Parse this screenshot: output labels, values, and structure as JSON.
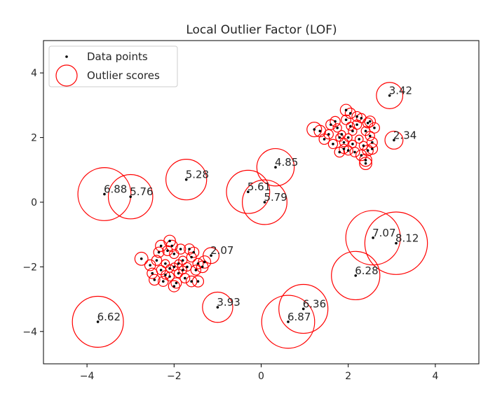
{
  "chart_data": {
    "type": "scatter",
    "title": "Local Outlier Factor (LOF)",
    "xlabel": "",
    "ylabel": "",
    "xlim": [
      -5,
      5
    ],
    "ylim": [
      -5,
      5
    ],
    "xticks": [
      "−4",
      "−2",
      "0",
      "2",
      "4"
    ],
    "yticks": [
      "−4",
      "−2",
      "0",
      "2",
      "4"
    ],
    "xtick_values": [
      -4,
      -2,
      0,
      2,
      4
    ],
    "ytick_values": [
      -4,
      -2,
      0,
      2,
      4
    ],
    "grid": false,
    "legend": {
      "position": "top-left",
      "entries": [
        "Data points",
        "Outlier scores"
      ]
    },
    "colors": {
      "points": "#000000",
      "circles": "#ff0000"
    },
    "outliers": [
      {
        "x": 2.95,
        "y": 3.3,
        "score": 3.42,
        "label": "3.42"
      },
      {
        "x": 3.05,
        "y": 1.92,
        "score": 2.34,
        "label": "2.34"
      },
      {
        "x": 0.33,
        "y": 1.08,
        "score": 4.85,
        "label": "4.85"
      },
      {
        "x": -1.72,
        "y": 0.7,
        "score": 5.28,
        "label": "5.28"
      },
      {
        "x": -3.6,
        "y": 0.25,
        "score": 6.88,
        "label": "6.88"
      },
      {
        "x": -3.0,
        "y": 0.17,
        "score": 5.76,
        "label": "5.76"
      },
      {
        "x": -0.3,
        "y": 0.32,
        "score": 5.61,
        "label": "5.61"
      },
      {
        "x": 0.08,
        "y": 0.0,
        "score": 5.79,
        "label": "5.79"
      },
      {
        "x": 2.57,
        "y": -1.1,
        "score": 7.07,
        "label": "7.07"
      },
      {
        "x": 3.1,
        "y": -1.27,
        "score": 8.12,
        "label": "8.12"
      },
      {
        "x": -1.15,
        "y": -1.65,
        "score": 2.07,
        "label": "2.07"
      },
      {
        "x": 2.17,
        "y": -2.27,
        "score": 6.28,
        "label": "6.28"
      },
      {
        "x": -1.0,
        "y": -3.25,
        "score": 3.93,
        "label": "3.93"
      },
      {
        "x": 0.97,
        "y": -3.3,
        "score": 6.36,
        "label": "6.36"
      },
      {
        "x": 0.62,
        "y": -3.7,
        "score": 6.87,
        "label": "6.87"
      },
      {
        "x": -3.75,
        "y": -3.7,
        "score": 6.62,
        "label": "6.62"
      }
    ],
    "inliers": [
      {
        "x": 2.0,
        "y": 2.0,
        "score": 1.0
      },
      {
        "x": 2.1,
        "y": 2.2,
        "score": 1.1
      },
      {
        "x": 1.85,
        "y": 2.1,
        "score": 1.0
      },
      {
        "x": 2.25,
        "y": 1.95,
        "score": 1.05
      },
      {
        "x": 1.9,
        "y": 1.85,
        "score": 1.1
      },
      {
        "x": 2.2,
        "y": 2.4,
        "score": 1.2
      },
      {
        "x": 1.75,
        "y": 2.3,
        "score": 1.1
      },
      {
        "x": 2.4,
        "y": 2.2,
        "score": 1.15
      },
      {
        "x": 1.65,
        "y": 1.8,
        "score": 1.2
      },
      {
        "x": 2.35,
        "y": 1.75,
        "score": 1.1
      },
      {
        "x": 2.0,
        "y": 1.6,
        "score": 1.2
      },
      {
        "x": 1.95,
        "y": 2.55,
        "score": 1.25
      },
      {
        "x": 2.3,
        "y": 2.6,
        "score": 1.2
      },
      {
        "x": 1.55,
        "y": 2.1,
        "score": 1.2
      },
      {
        "x": 2.5,
        "y": 2.05,
        "score": 1.2
      },
      {
        "x": 1.8,
        "y": 1.55,
        "score": 1.3
      },
      {
        "x": 2.15,
        "y": 1.55,
        "score": 1.25
      },
      {
        "x": 2.45,
        "y": 2.45,
        "score": 1.3
      },
      {
        "x": 1.7,
        "y": 2.5,
        "score": 1.3
      },
      {
        "x": 2.55,
        "y": 1.85,
        "score": 1.35
      },
      {
        "x": 2.05,
        "y": 2.75,
        "score": 1.35
      },
      {
        "x": 1.45,
        "y": 1.95,
        "score": 1.35
      },
      {
        "x": 2.6,
        "y": 2.3,
        "score": 1.35
      },
      {
        "x": 1.6,
        "y": 2.4,
        "score": 1.3
      },
      {
        "x": 2.3,
        "y": 1.45,
        "score": 1.4
      },
      {
        "x": 1.95,
        "y": 2.85,
        "score": 1.5
      },
      {
        "x": 2.5,
        "y": 2.5,
        "score": 1.4
      },
      {
        "x": 2.45,
        "y": 1.6,
        "score": 1.4
      },
      {
        "x": 1.35,
        "y": 2.2,
        "score": 1.5
      },
      {
        "x": 2.2,
        "y": 2.65,
        "score": 1.3
      },
      {
        "x": 2.55,
        "y": 1.65,
        "score": 1.4
      },
      {
        "x": 1.9,
        "y": 1.65,
        "score": 1.2
      },
      {
        "x": 2.1,
        "y": 1.8,
        "score": 1.0
      },
      {
        "x": 1.8,
        "y": 2.0,
        "score": 1.0
      },
      {
        "x": 2.05,
        "y": 2.35,
        "score": 1.05
      },
      {
        "x": 2.4,
        "y": 1.3,
        "score": 1.6
      },
      {
        "x": 2.4,
        "y": 1.2,
        "score": 1.6
      },
      {
        "x": 1.22,
        "y": 2.25,
        "score": 1.9
      },
      {
        "x": -2.0,
        "y": -2.0,
        "score": 1.0
      },
      {
        "x": -1.8,
        "y": -1.8,
        "score": 1.1
      },
      {
        "x": -2.2,
        "y": -1.9,
        "score": 1.05
      },
      {
        "x": -1.9,
        "y": -2.2,
        "score": 1.1
      },
      {
        "x": -2.1,
        "y": -2.3,
        "score": 1.15
      },
      {
        "x": -1.7,
        "y": -2.0,
        "score": 1.1
      },
      {
        "x": -2.3,
        "y": -2.1,
        "score": 1.2
      },
      {
        "x": -2.0,
        "y": -1.6,
        "score": 1.2
      },
      {
        "x": -1.6,
        "y": -1.7,
        "score": 1.25
      },
      {
        "x": -2.4,
        "y": -1.8,
        "score": 1.3
      },
      {
        "x": -1.75,
        "y": -2.35,
        "score": 1.25
      },
      {
        "x": -2.25,
        "y": -2.45,
        "score": 1.3
      },
      {
        "x": -1.5,
        "y": -2.1,
        "score": 1.3
      },
      {
        "x": -2.5,
        "y": -2.2,
        "score": 1.35
      },
      {
        "x": -1.95,
        "y": -2.5,
        "score": 1.35
      },
      {
        "x": -2.15,
        "y": -1.5,
        "score": 1.3
      },
      {
        "x": -1.65,
        "y": -1.45,
        "score": 1.35
      },
      {
        "x": -2.35,
        "y": -1.55,
        "score": 1.35
      },
      {
        "x": -1.45,
        "y": -1.9,
        "score": 1.35
      },
      {
        "x": -2.55,
        "y": -1.95,
        "score": 1.4
      },
      {
        "x": -1.85,
        "y": -1.45,
        "score": 1.3
      },
      {
        "x": -1.6,
        "y": -2.45,
        "score": 1.4
      },
      {
        "x": -2.05,
        "y": -1.35,
        "score": 1.45
      },
      {
        "x": -2.45,
        "y": -2.4,
        "score": 1.4
      },
      {
        "x": -1.55,
        "y": -1.55,
        "score": 1.35
      },
      {
        "x": -1.35,
        "y": -2.0,
        "score": 1.5
      },
      {
        "x": -1.9,
        "y": -1.9,
        "score": 1.0
      },
      {
        "x": -2.1,
        "y": -2.05,
        "score": 1.0
      },
      {
        "x": -1.8,
        "y": -2.1,
        "score": 1.05
      },
      {
        "x": -2.2,
        "y": -2.25,
        "score": 1.1
      },
      {
        "x": -2.1,
        "y": -1.2,
        "score": 1.5
      },
      {
        "x": -2.0,
        "y": -2.6,
        "score": 1.45
      },
      {
        "x": -1.45,
        "y": -2.45,
        "score": 1.45
      },
      {
        "x": -2.75,
        "y": -1.75,
        "score": 1.7
      },
      {
        "x": -1.3,
        "y": -1.85,
        "score": 1.6
      },
      {
        "x": -2.3,
        "y": -1.35,
        "score": 1.45
      }
    ]
  }
}
